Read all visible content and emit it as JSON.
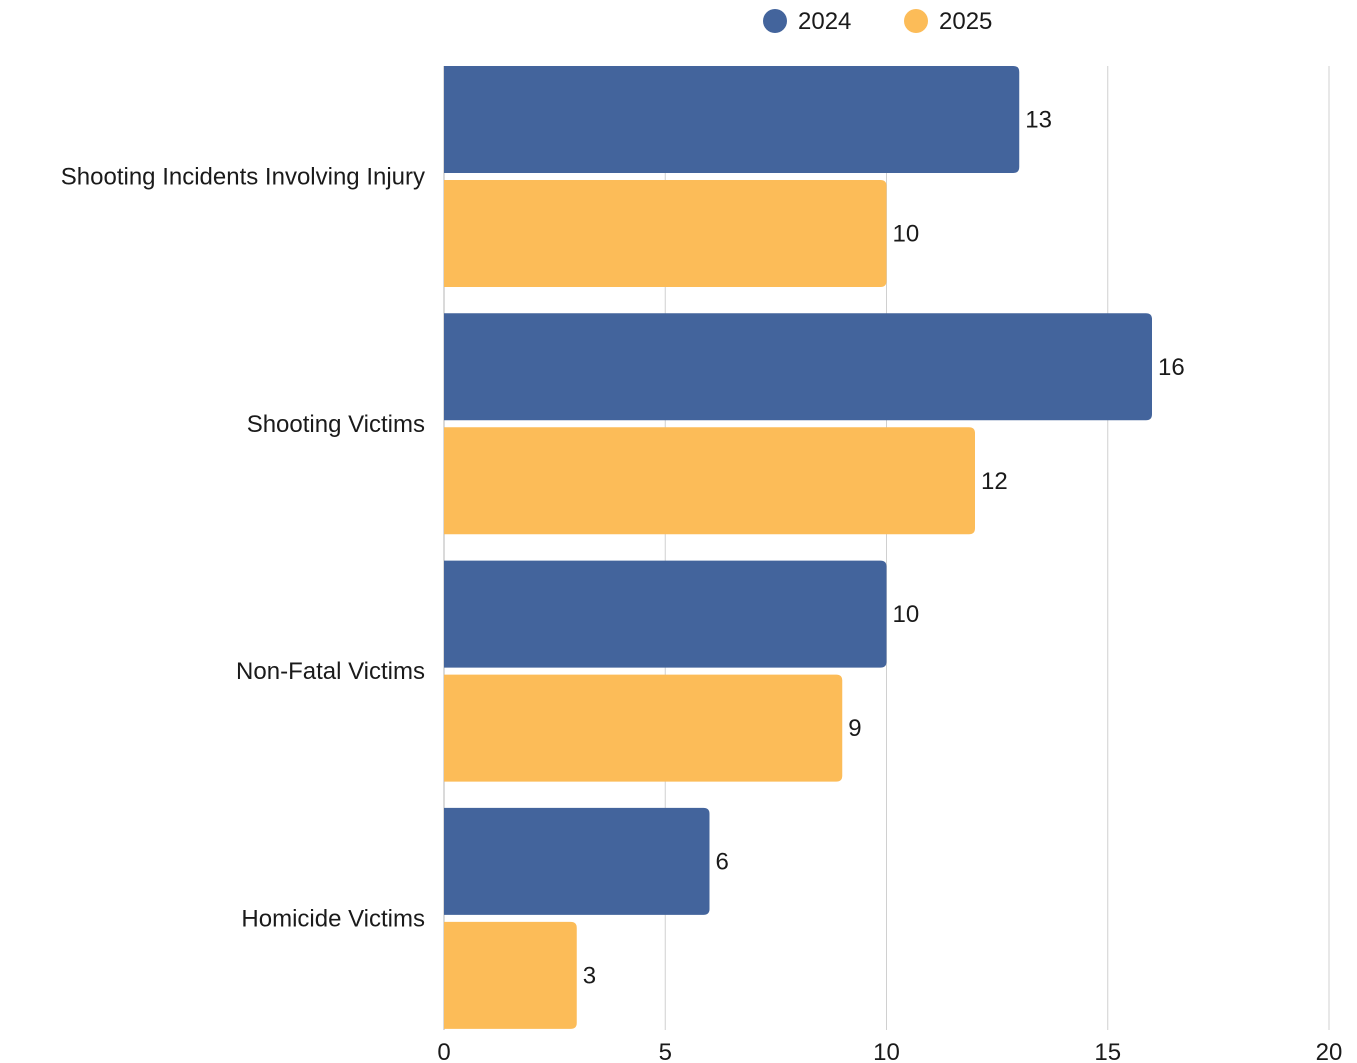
{
  "chart_data": {
    "type": "bar",
    "orientation": "horizontal",
    "categories": [
      "Shooting Incidents Involving Injury",
      "Shooting Victims",
      "Non-Fatal Victims",
      "Homicide Victims"
    ],
    "series": [
      {
        "name": "2024",
        "color": "#43649c",
        "values": [
          13,
          16,
          10,
          6
        ]
      },
      {
        "name": "2025",
        "color": "#fcbc58",
        "values": [
          10,
          12,
          9,
          3
        ]
      }
    ],
    "xlim": [
      0,
      20
    ],
    "x_ticks": [
      0,
      5,
      10,
      15,
      20
    ],
    "grid": true,
    "legend_position": "top-center",
    "data_labels": true
  }
}
